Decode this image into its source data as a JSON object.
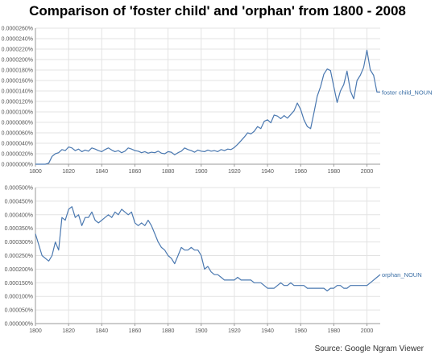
{
  "title": "Comparison of 'foster child' and 'orphan' from 1800 - 2008",
  "source": "Source: Google Ngram Viewer",
  "colors": {
    "line": "#4a78b0",
    "grid": "#e3e3e3",
    "axis": "#9a9a9a"
  },
  "chart_data": [
    {
      "type": "line",
      "xlim": [
        1800,
        2008
      ],
      "ylim": [
        0,
        2.6e-07
      ],
      "x_ticks": [
        "1800",
        "1820",
        "1840",
        "1860",
        "1880",
        "1900",
        "1920",
        "1940",
        "1960",
        "1980",
        "2000"
      ],
      "y_ticks": [
        "0.0000000%",
        "0.0000020%",
        "0.0000040%",
        "0.0000060%",
        "0.0000080%",
        "0.0000100%",
        "0.0000120%",
        "0.0000140%",
        "0.0000160%",
        "0.0000180%",
        "0.0000200%",
        "0.0000220%",
        "0.0000240%",
        "0.0000260%"
      ],
      "series": [
        {
          "name": "foster child_NOUN",
          "x": [
            1800,
            1806,
            1808,
            1810,
            1812,
            1814,
            1816,
            1818,
            1820,
            1822,
            1824,
            1826,
            1828,
            1830,
            1832,
            1834,
            1836,
            1838,
            1840,
            1842,
            1844,
            1846,
            1848,
            1850,
            1852,
            1854,
            1856,
            1858,
            1860,
            1862,
            1864,
            1866,
            1868,
            1870,
            1872,
            1874,
            1876,
            1878,
            1880,
            1882,
            1884,
            1886,
            1888,
            1890,
            1892,
            1894,
            1896,
            1898,
            1900,
            1902,
            1904,
            1906,
            1908,
            1910,
            1912,
            1914,
            1916,
            1918,
            1920,
            1922,
            1924,
            1926,
            1928,
            1930,
            1932,
            1934,
            1936,
            1938,
            1940,
            1942,
            1944,
            1946,
            1948,
            1950,
            1952,
            1954,
            1956,
            1958,
            1960,
            1962,
            1964,
            1966,
            1968,
            1970,
            1972,
            1974,
            1976,
            1978,
            1980,
            1982,
            1984,
            1986,
            1988,
            1990,
            1992,
            1994,
            1996,
            1998,
            2000,
            2002,
            2004,
            2006,
            2008
          ],
          "y": [
            0,
            0,
            2e-09,
            1.5e-08,
            2e-08,
            2.2e-08,
            2.8e-08,
            2.6e-08,
            3.3e-08,
            3.1e-08,
            2.6e-08,
            2.9e-08,
            2.4e-08,
            2.7e-08,
            2.5e-08,
            3.1e-08,
            2.9e-08,
            2.6e-08,
            2.4e-08,
            2.8e-08,
            3.1e-08,
            2.7e-08,
            2.4e-08,
            2.6e-08,
            2.2e-08,
            2.5e-08,
            3.1e-08,
            2.9e-08,
            2.6e-08,
            2.5e-08,
            2.2e-08,
            2.4e-08,
            2.1e-08,
            2.3e-08,
            2.2e-08,
            2.5e-08,
            2.1e-08,
            2e-08,
            2.4e-08,
            2.3e-08,
            1.8e-08,
            2.2e-08,
            2.5e-08,
            3.1e-08,
            2.8e-08,
            2.6e-08,
            2.3e-08,
            2.7e-08,
            2.5e-08,
            2.4e-08,
            2.7e-08,
            2.5e-08,
            2.6e-08,
            2.4e-08,
            2.8e-08,
            2.6e-08,
            2.9e-08,
            2.8e-08,
            3.2e-08,
            3.8e-08,
            4.5e-08,
            5.2e-08,
            6e-08,
            5.8e-08,
            6.3e-08,
            7.2e-08,
            6.8e-08,
            8.2e-08,
            8.5e-08,
            7.9e-08,
            9.4e-08,
            9.2e-08,
            8.7e-08,
            9.3e-08,
            8.8e-08,
            9.5e-08,
            1.02e-07,
            1.17e-07,
            1.05e-07,
            8.5e-08,
            7.2e-08,
            6.8e-08,
            9.8e-08,
            1.3e-07,
            1.48e-07,
            1.72e-07,
            1.82e-07,
            1.79e-07,
            1.48e-07,
            1.18e-07,
            1.4e-07,
            1.52e-07,
            1.78e-07,
            1.4e-07,
            1.25e-07,
            1.6e-07,
            1.7e-07,
            1.85e-07,
            2.18e-07,
            1.8e-07,
            1.7e-07,
            1.38e-07,
            1.38e-07
          ]
        }
      ]
    },
    {
      "type": "line",
      "xlim": [
        1800,
        2008
      ],
      "ylim": [
        0,
        5e-06
      ],
      "x_ticks": [
        "1800",
        "1820",
        "1840",
        "1860",
        "1880",
        "1900",
        "1920",
        "1940",
        "1960",
        "1980",
        "2000"
      ],
      "y_ticks": [
        "0.000000%",
        "0.000050%",
        "0.000100%",
        "0.000150%",
        "0.000200%",
        "0.000250%",
        "0.000300%",
        "0.000350%",
        "0.000400%",
        "0.000450%",
        "0.000500%"
      ],
      "series": [
        {
          "name": "orphan_NOUN",
          "x": [
            1800,
            1802,
            1804,
            1806,
            1808,
            1810,
            1812,
            1814,
            1816,
            1818,
            1820,
            1822,
            1824,
            1826,
            1828,
            1830,
            1832,
            1834,
            1836,
            1838,
            1840,
            1842,
            1844,
            1846,
            1848,
            1850,
            1852,
            1854,
            1856,
            1858,
            1860,
            1862,
            1864,
            1866,
            1868,
            1870,
            1872,
            1874,
            1876,
            1878,
            1880,
            1882,
            1884,
            1886,
            1888,
            1890,
            1892,
            1894,
            1896,
            1898,
            1900,
            1902,
            1904,
            1906,
            1908,
            1910,
            1912,
            1914,
            1916,
            1918,
            1920,
            1922,
            1924,
            1926,
            1928,
            1930,
            1932,
            1934,
            1936,
            1938,
            1940,
            1942,
            1944,
            1946,
            1948,
            1950,
            1952,
            1954,
            1956,
            1958,
            1960,
            1962,
            1964,
            1966,
            1968,
            1970,
            1972,
            1974,
            1976,
            1978,
            1980,
            1982,
            1984,
            1986,
            1988,
            1990,
            1992,
            1994,
            1996,
            1998,
            2000,
            2002,
            2004,
            2006,
            2008
          ],
          "y": [
            3.3e-06,
            2.9e-06,
            2.5e-06,
            2.4e-06,
            2.3e-06,
            2.5e-06,
            3e-06,
            2.7e-06,
            3.9e-06,
            3.8e-06,
            4.2e-06,
            4.3e-06,
            3.9e-06,
            4e-06,
            3.6e-06,
            3.9e-06,
            3.9e-06,
            4.1e-06,
            3.8e-06,
            3.7e-06,
            3.8e-06,
            3.9e-06,
            4e-06,
            3.9e-06,
            4.1e-06,
            4e-06,
            4.2e-06,
            4.1e-06,
            4e-06,
            4.1e-06,
            3.7e-06,
            3.6e-06,
            3.7e-06,
            3.6e-06,
            3.8e-06,
            3.6e-06,
            3.3e-06,
            3e-06,
            2.8e-06,
            2.7e-06,
            2.5e-06,
            2.4e-06,
            2.2e-06,
            2.5e-06,
            2.8e-06,
            2.7e-06,
            2.7e-06,
            2.8e-06,
            2.7e-06,
            2.7e-06,
            2.5e-06,
            2e-06,
            2.1e-06,
            1.9e-06,
            1.8e-06,
            1.8e-06,
            1.7e-06,
            1.6e-06,
            1.6e-06,
            1.6e-06,
            1.6e-06,
            1.7e-06,
            1.6e-06,
            1.6e-06,
            1.6e-06,
            1.6e-06,
            1.5e-06,
            1.5e-06,
            1.5e-06,
            1.4e-06,
            1.3e-06,
            1.3e-06,
            1.3e-06,
            1.4e-06,
            1.5e-06,
            1.4e-06,
            1.4e-06,
            1.5e-06,
            1.4e-06,
            1.4e-06,
            1.4e-06,
            1.4e-06,
            1.3e-06,
            1.3e-06,
            1.3e-06,
            1.3e-06,
            1.3e-06,
            1.3e-06,
            1.2e-06,
            1.3e-06,
            1.3e-06,
            1.4e-06,
            1.4e-06,
            1.3e-06,
            1.3e-06,
            1.4e-06,
            1.4e-06,
            1.4e-06,
            1.4e-06,
            1.4e-06,
            1.4e-06,
            1.5e-06,
            1.6e-06,
            1.7e-06,
            1.8e-06
          ]
        }
      ]
    }
  ]
}
